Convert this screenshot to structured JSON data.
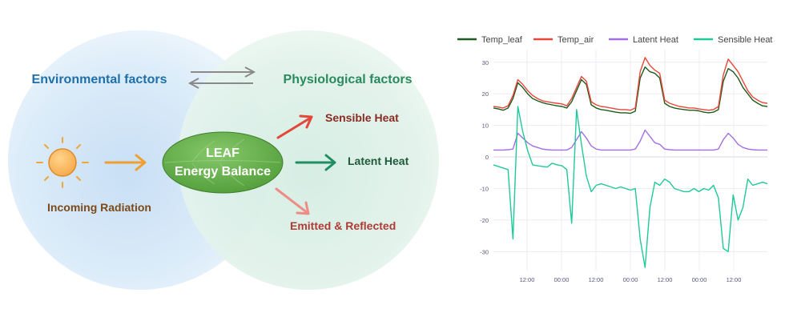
{
  "diagram": {
    "environmental_label": "Environmental factors",
    "physiological_label": "Physiological factors",
    "incoming_label": "Incoming Radiation",
    "leaf_line1": "LEAF",
    "leaf_line2": "Energy Balance",
    "sensible_label": "Sensible Heat",
    "latent_label": "Latent Heat",
    "emitted_label": "Emitted & Reflected",
    "sun_icon": "sun-icon",
    "colors": {
      "env_text": "#1f6fa8",
      "phys_text": "#2a8a5e",
      "incoming_text": "#7a4a1a",
      "sensible": "#e2473a",
      "latent": "#1f8f63",
      "emitted": "#ef8c86",
      "incoming_arrow": "#f0a030",
      "leaf_fill": "#5fae45"
    }
  },
  "chart_data": {
    "type": "line",
    "legend_position": "top",
    "grid": true,
    "ylim": [
      -36,
      34
    ],
    "yticks": [
      30,
      20,
      10,
      0,
      -10,
      -20,
      -30
    ],
    "xticks": [
      "12:00",
      "00:00",
      "12:00",
      "00:00",
      "12:00",
      "00:00",
      "12:00"
    ],
    "x": [
      0,
      0.25,
      0.5,
      0.75,
      1.0,
      1.25,
      1.5,
      1.75,
      2.0,
      2.25,
      2.5,
      2.75,
      3.0,
      3.25,
      3.5,
      3.75,
      4.0,
      4.25,
      4.5,
      4.75,
      5.0,
      5.25,
      5.5,
      5.75,
      6.0,
      6.25,
      6.5,
      6.75,
      7.0,
      7.25,
      7.5,
      7.75,
      8.0,
      8.25,
      8.5,
      8.75,
      9.0,
      9.25,
      9.5,
      9.75,
      10.0,
      10.25,
      10.5,
      10.75,
      11.0,
      11.25,
      11.5,
      11.75,
      12.0,
      12.25,
      12.5,
      12.75,
      13.0,
      13.25,
      13.5,
      13.75,
      14.0
    ],
    "series": [
      {
        "name": "Temp_leaf",
        "color": "#1e5b1e",
        "values": [
          15.5,
          15.2,
          14.8,
          15.5,
          18.5,
          23.5,
          22.0,
          20.0,
          18.5,
          17.8,
          17.2,
          16.8,
          16.5,
          16.2,
          16.0,
          15.5,
          17.5,
          21.0,
          24.5,
          23.0,
          16.5,
          15.5,
          15.0,
          14.8,
          14.5,
          14.2,
          14.0,
          14.0,
          13.8,
          14.5,
          25.0,
          28.5,
          27.0,
          26.5,
          25.0,
          17.0,
          16.0,
          15.5,
          15.2,
          15.0,
          14.8,
          14.8,
          14.6,
          14.2,
          14.0,
          14.2,
          15.0,
          24.0,
          28.0,
          27.0,
          25.0,
          22.0,
          20.0,
          18.0,
          17.0,
          16.2,
          16.0
        ]
      },
      {
        "name": "Temp_air",
        "color": "#e8473a",
        "values": [
          16.0,
          15.8,
          15.5,
          16.2,
          19.5,
          24.5,
          23.0,
          21.0,
          19.5,
          18.5,
          17.8,
          17.5,
          17.2,
          17.0,
          16.8,
          16.2,
          18.5,
          22.0,
          25.5,
          24.0,
          17.5,
          16.5,
          16.0,
          15.8,
          15.5,
          15.2,
          15.0,
          15.0,
          14.8,
          15.5,
          27.0,
          31.5,
          29.0,
          27.5,
          26.5,
          18.0,
          17.0,
          16.5,
          16.0,
          15.8,
          15.5,
          15.5,
          15.2,
          15.0,
          14.8,
          15.0,
          16.0,
          26.0,
          31.0,
          29.0,
          27.0,
          24.0,
          21.0,
          19.0,
          18.0,
          17.2,
          17.0
        ]
      },
      {
        "name": "Latent Heat",
        "color": "#a46ee3",
        "values": [
          2.2,
          2.2,
          2.2,
          2.3,
          2.5,
          7.5,
          6.0,
          4.5,
          3.5,
          3.0,
          2.5,
          2.3,
          2.2,
          2.2,
          2.2,
          2.2,
          3.0,
          5.5,
          8.0,
          6.0,
          3.5,
          2.5,
          2.2,
          2.2,
          2.2,
          2.2,
          2.2,
          2.2,
          2.2,
          2.5,
          5.0,
          8.5,
          6.5,
          4.5,
          4.0,
          2.5,
          2.3,
          2.2,
          2.2,
          2.2,
          2.2,
          2.2,
          2.2,
          2.2,
          2.2,
          2.2,
          2.5,
          5.5,
          7.5,
          6.0,
          4.0,
          3.0,
          2.5,
          2.3,
          2.2,
          2.2,
          2.2
        ]
      },
      {
        "name": "Sensible Heat",
        "color": "#1fc99a",
        "values": [
          -2.5,
          -3.0,
          -3.5,
          -4.0,
          -26.0,
          16.0,
          8.0,
          2.0,
          -2.5,
          -2.8,
          -3.0,
          -3.2,
          -2.0,
          -2.5,
          -2.8,
          -4.0,
          -21.0,
          15.0,
          4.0,
          -6.0,
          -11.0,
          -9.0,
          -8.5,
          -9.0,
          -9.5,
          -10.0,
          -9.5,
          -10.0,
          -10.5,
          -10.0,
          -26.0,
          -35.0,
          -16.0,
          -8.0,
          -9.0,
          -7.0,
          -8.0,
          -10.0,
          -10.5,
          -11.0,
          -11.0,
          -10.0,
          -11.0,
          -10.0,
          -10.5,
          -9.0,
          -13.0,
          -29.0,
          -30.0,
          -12.0,
          -20.0,
          -16.0,
          -7.0,
          -9.0,
          -8.5,
          -8.0,
          -8.5
        ]
      }
    ]
  }
}
